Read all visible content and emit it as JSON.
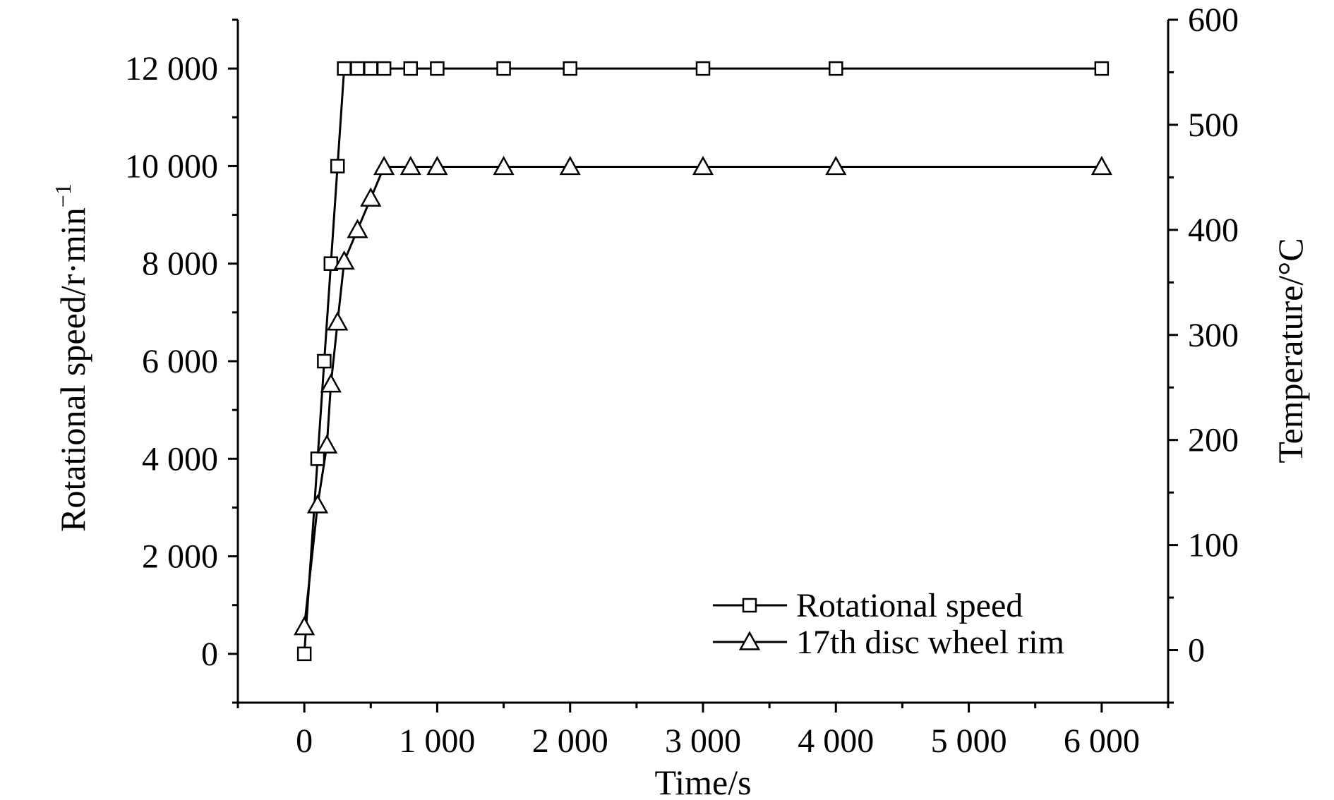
{
  "chart_data": {
    "type": "line",
    "xlabel": "Time/s",
    "ylabel": "Rotational speed/r·min",
    "ylabel_sup": "−1",
    "y2label": "Temperature/°C",
    "xlim": [
      -500,
      6500
    ],
    "ylim": [
      -1000,
      13000
    ],
    "y2lim": [
      -50,
      600
    ],
    "xticks": [
      0,
      1000,
      2000,
      3000,
      4000,
      5000,
      6000
    ],
    "xtick_labels": [
      "0",
      "1 000",
      "2 000",
      "3 000",
      "4 000",
      "5 000",
      "6 000"
    ],
    "yticks": [
      0,
      2000,
      4000,
      6000,
      8000,
      10000,
      12000
    ],
    "ytick_labels": [
      "0",
      "2 000",
      "4 000",
      "6 000",
      "8 000",
      "10 000",
      "12 000"
    ],
    "y2ticks": [
      0,
      100,
      200,
      300,
      400,
      500,
      600
    ],
    "y2tick_labels": [
      "0",
      "100",
      "200",
      "300",
      "400",
      "500",
      "600"
    ],
    "grid": false,
    "legend_position": "bottom-right",
    "series": [
      {
        "name": "Rotational speed",
        "axis": "left",
        "marker": "square",
        "x": [
          0,
          100,
          150,
          200,
          250,
          300,
          400,
          500,
          600,
          800,
          1000,
          1500,
          2000,
          3000,
          4000,
          6000
        ],
        "y": [
          0,
          4000,
          6000,
          8000,
          10000,
          12000,
          12000,
          12000,
          12000,
          12000,
          12000,
          12000,
          12000,
          12000,
          12000,
          12000
        ]
      },
      {
        "name": "17th disc wheel rim",
        "axis": "right",
        "marker": "triangle",
        "x": [
          0,
          100,
          170,
          200,
          250,
          300,
          400,
          500,
          600,
          800,
          1000,
          1500,
          2000,
          3000,
          4000,
          6000
        ],
        "y": [
          22,
          138,
          195,
          253,
          312,
          370,
          400,
          430,
          460,
          460,
          460,
          460,
          460,
          460,
          460,
          460
        ]
      }
    ]
  }
}
